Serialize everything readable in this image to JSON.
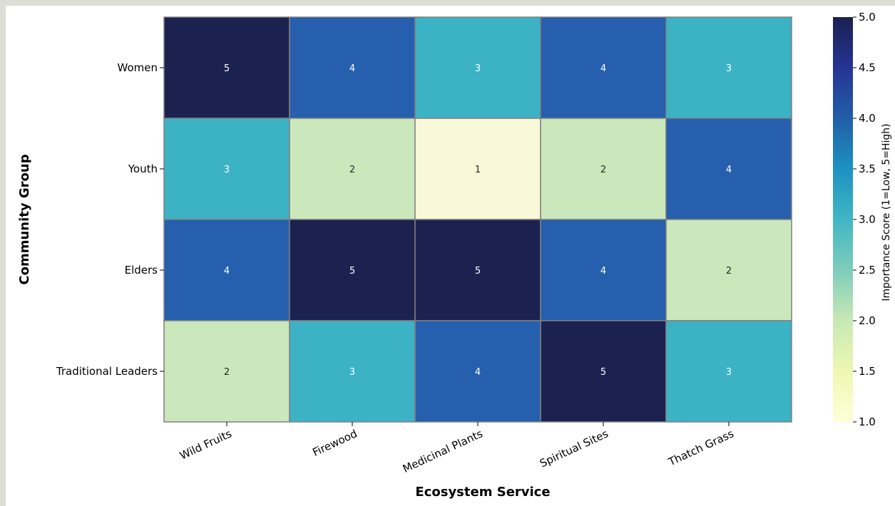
{
  "chart_data": {
    "type": "heatmap",
    "title": "",
    "xlabel": "Ecosystem Service",
    "ylabel": "Community Group",
    "x_categories": [
      "Wild Fruits",
      "Firewood",
      "Medicinal Plants",
      "Spiritual Sites",
      "Thatch Grass"
    ],
    "y_categories": [
      "Women",
      "Youth",
      "Elders",
      "Traditional Leaders"
    ],
    "values": [
      [
        5,
        4,
        3,
        4,
        3
      ],
      [
        3,
        2,
        1,
        2,
        4
      ],
      [
        4,
        5,
        5,
        4,
        2
      ],
      [
        2,
        3,
        4,
        5,
        3
      ]
    ],
    "annotated": true,
    "colormap": "YlGnBu",
    "value_colors": {
      "1": "#f9f9d9",
      "2": "#cae8bc",
      "3": "#3cb2c5",
      "4": "#265fad",
      "5": "#1c224f"
    },
    "colorbar": {
      "label": "Importance Score (1=Low, 5=High)",
      "range": [
        1.0,
        5.0
      ],
      "ticks": [
        "1.0",
        "1.5",
        "2.0",
        "2.5",
        "3.0",
        "3.5",
        "4.0",
        "4.5",
        "5.0"
      ],
      "stops": [
        "#ffffd9",
        "#edf8b1",
        "#c7e9b4",
        "#7fcdbb",
        "#41b6c4",
        "#1d91c0",
        "#225ea8",
        "#253494",
        "#1b2051"
      ]
    }
  }
}
